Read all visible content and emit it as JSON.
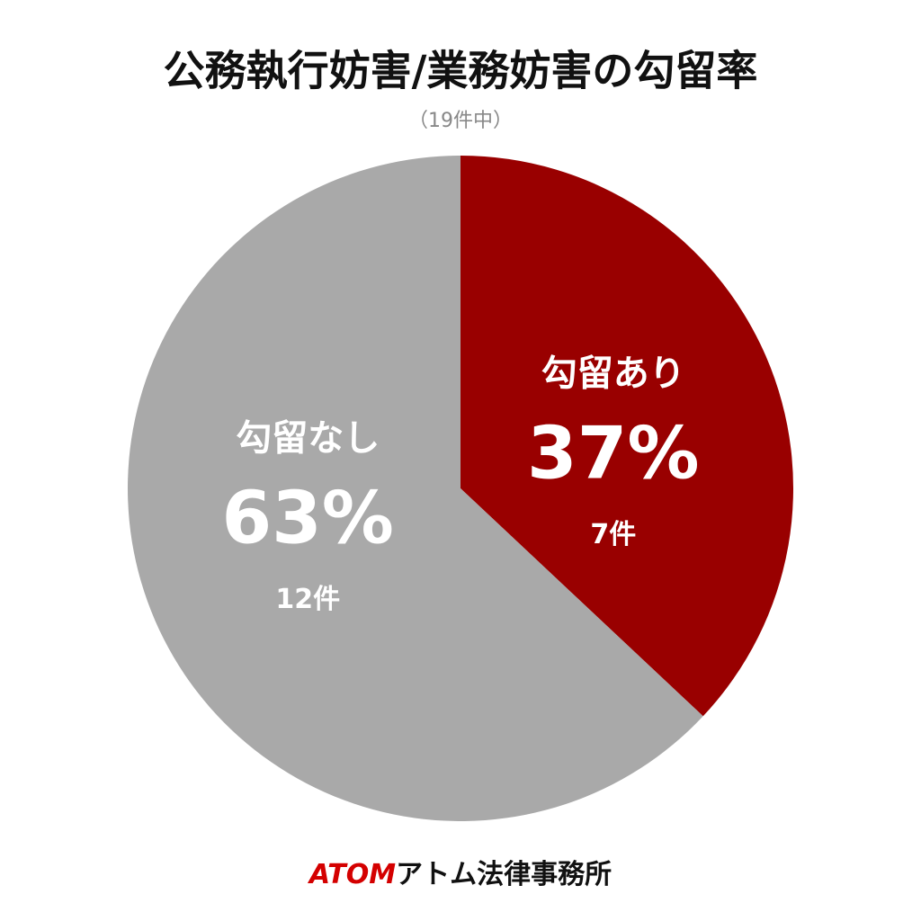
{
  "chart_data": {
    "type": "pie",
    "title": "公務執行妨害/業務妨害の勾留率",
    "subtitle": "（19件中）",
    "categories": [
      "勾留あり",
      "勾留なし"
    ],
    "values": [
      37,
      63
    ],
    "value_labels": [
      "37%",
      "63%"
    ],
    "count_labels": [
      "7件",
      "12件"
    ],
    "colors": [
      "#990000",
      "#a9a9a9"
    ]
  },
  "footer": {
    "logo": "ATOM",
    "name": "アトム法律事務所"
  }
}
